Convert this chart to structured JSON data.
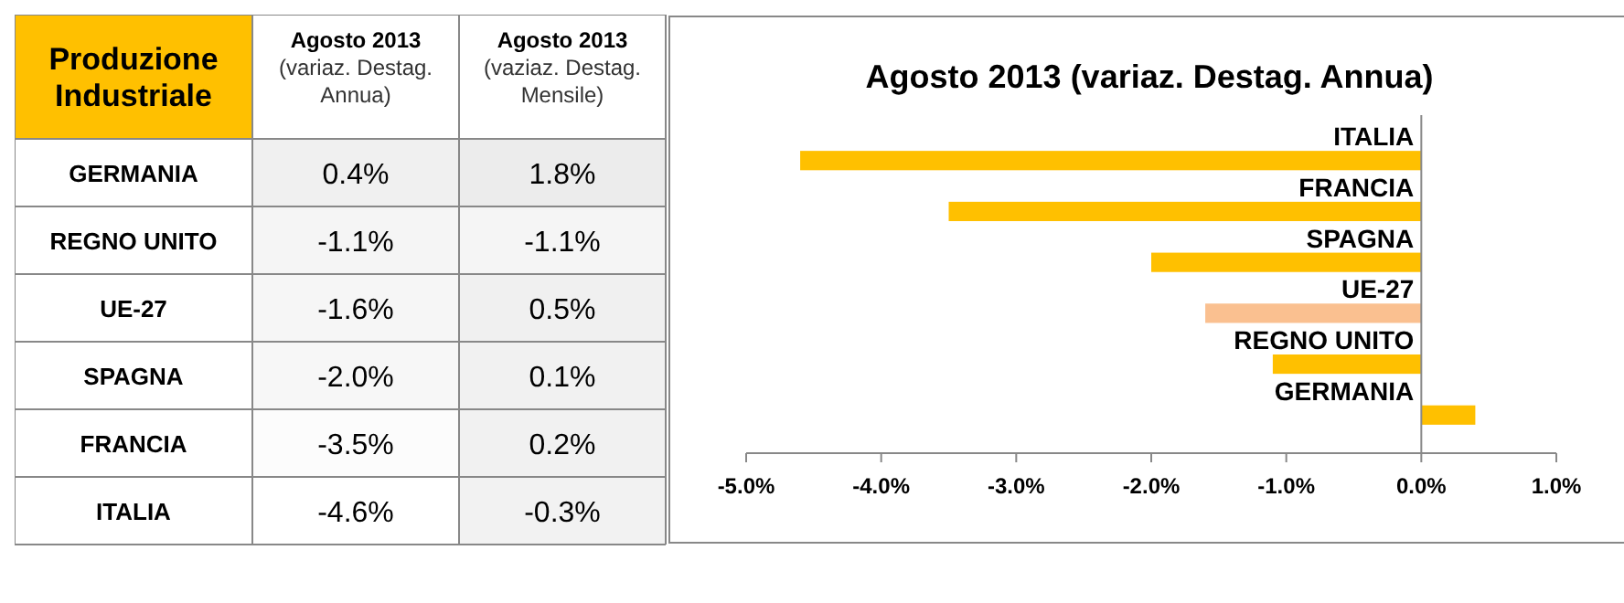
{
  "chart_data": [
    {
      "type": "heatmap",
      "title": "Produzione Industriale",
      "categories": [
        "Agosto 2013 (variaz. Destag. Annua)",
        "Agosto 2013 (vaziaz. Destag. Mensile)"
      ],
      "y_categories": [
        "GERMANIA",
        "REGNO UNITO",
        "UE-27",
        "SPAGNA",
        "FRANCIA",
        "ITALIA"
      ],
      "cells": [
        [
          0.4,
          1.8
        ],
        [
          -1.1,
          -1.1
        ],
        [
          -1.6,
          0.5
        ],
        [
          -2.0,
          0.1
        ],
        [
          -3.5,
          0.2
        ],
        [
          -4.6,
          -0.3
        ]
      ],
      "cell_labels": [
        [
          "0.4%",
          "1.8%"
        ],
        [
          "-1.1%",
          "-1.1%"
        ],
        [
          "-1.6%",
          "0.5%"
        ],
        [
          "-2.0%",
          "0.1%"
        ],
        [
          "-3.5%",
          "0.2%"
        ],
        [
          "-4.6%",
          "-0.3%"
        ]
      ]
    },
    {
      "type": "bar",
      "orientation": "horizontal",
      "title": "Agosto 2013 (variaz. Destag. Annua)",
      "categories": [
        "ITALIA",
        "FRANCIA",
        "SPAGNA",
        "UE-27",
        "REGNO UNITO",
        "GERMANIA"
      ],
      "values": [
        -4.6,
        -3.5,
        -2.0,
        -1.6,
        -1.1,
        0.4
      ],
      "colors": [
        "#ffc000",
        "#ffc000",
        "#ffc000",
        "#fac090",
        "#ffc000",
        "#ffc000"
      ],
      "xlim": [
        -5,
        1
      ],
      "xticks": [
        {
          "value": -5,
          "label": "-5.0%"
        },
        {
          "value": -4,
          "label": "-4.0%"
        },
        {
          "value": -3,
          "label": "-3.0%"
        },
        {
          "value": -2,
          "label": "-2.0%"
        },
        {
          "value": -1,
          "label": "-1.0%"
        },
        {
          "value": 0,
          "label": "0.0%"
        },
        {
          "value": 1,
          "label": "1.0%"
        }
      ],
      "grid": false
    }
  ]
}
